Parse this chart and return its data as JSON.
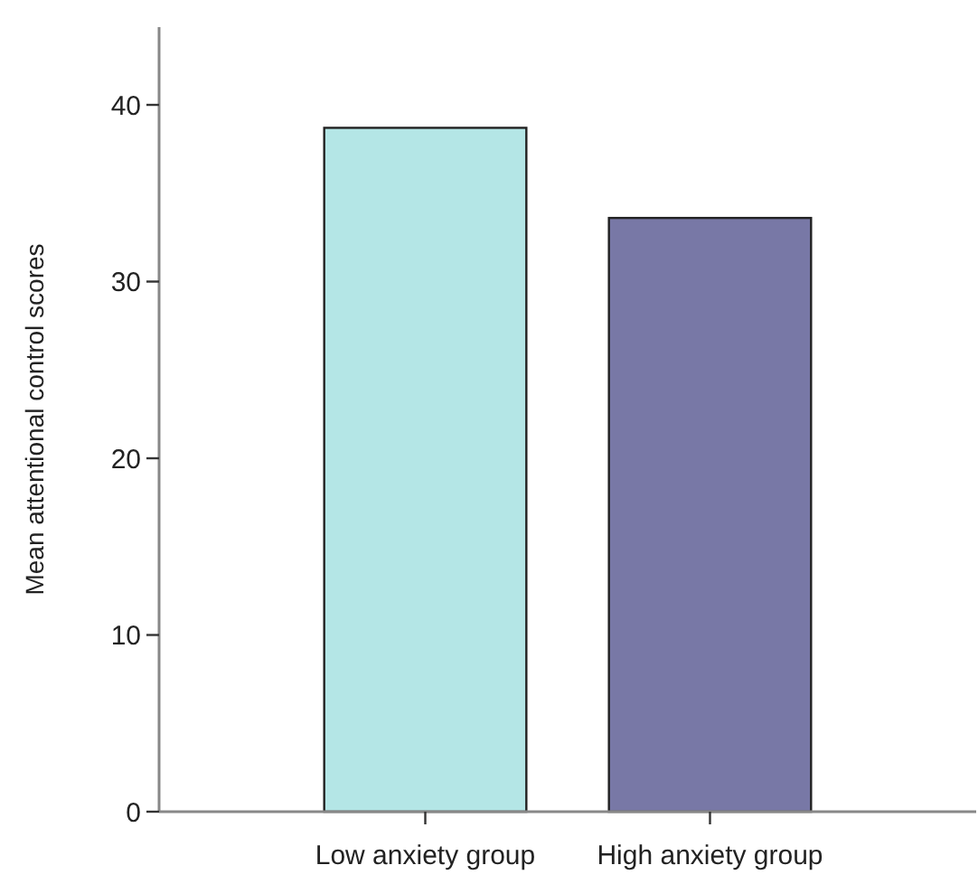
{
  "chart_data": {
    "type": "bar",
    "ylabel": "Mean attentional control scores",
    "categories": [
      "Low anxiety group",
      "High anxiety group"
    ],
    "values": [
      38.7,
      33.6
    ],
    "colors": [
      "#b4e6e6",
      "#7878a6"
    ],
    "ylim": [
      0,
      44.4
    ],
    "yticks": [
      0,
      10,
      20,
      30,
      40
    ],
    "grid": false
  }
}
